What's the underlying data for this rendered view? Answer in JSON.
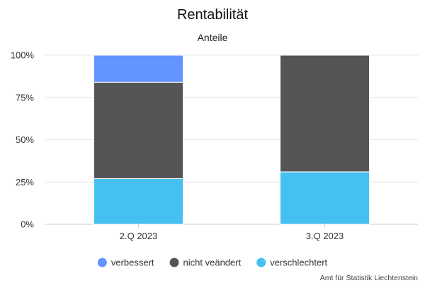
{
  "chart_data": {
    "type": "bar",
    "stacked": true,
    "percent": true,
    "title": "Rentabilität",
    "subtitle": "Anteile",
    "categories": [
      "2.Q 2023",
      "3.Q 2023"
    ],
    "series": [
      {
        "name": "verschlechtert",
        "color": "#44c1f0",
        "values": [
          27,
          31
        ]
      },
      {
        "name": "nicht veändert",
        "color": "#555557",
        "values": [
          57,
          69
        ]
      },
      {
        "name": "verbessert",
        "color": "#6394ff",
        "values": [
          16,
          0
        ]
      }
    ],
    "legend_order": [
      "verbessert",
      "nicht veändert",
      "verschlechtert"
    ],
    "y_ticks": [
      "0%",
      "25%",
      "50%",
      "75%",
      "100%"
    ],
    "ylim": [
      0,
      100
    ],
    "grid": true,
    "legend_position": "bottom",
    "credit": "Amt für Statistik Liechtenstein"
  }
}
